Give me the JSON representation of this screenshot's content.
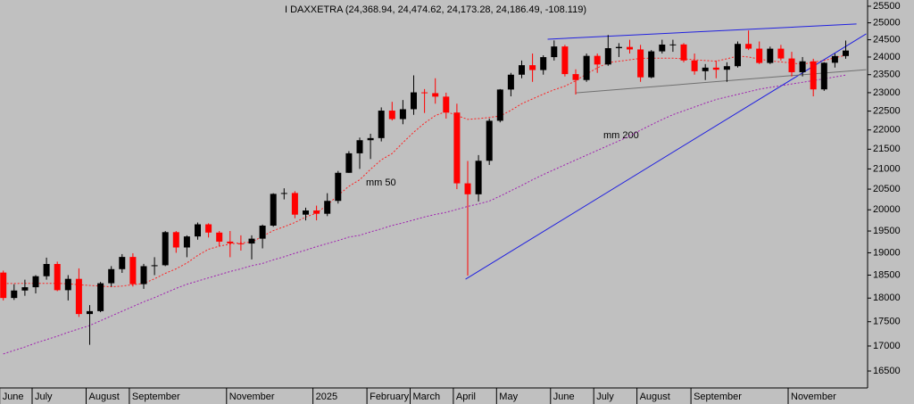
{
  "chart_data": {
    "type": "candlestick",
    "title": "I DAXXETRA (24,368.94, 24,474.62, 24,173.28, 24,186.49, -108.119)",
    "log_y": true,
    "ylim": [
      16170,
      25690
    ],
    "yticks": [
      16500,
      17000,
      17500,
      18000,
      18500,
      19000,
      19500,
      20000,
      20500,
      21000,
      21500,
      22000,
      22500,
      23000,
      23500,
      24000,
      24500,
      25000,
      25500
    ],
    "up_color": "#000000",
    "down_color": "#ff0000",
    "categories": [
      "June",
      null,
      null,
      "July",
      null,
      null,
      null,
      null,
      "August",
      null,
      null,
      null,
      "September",
      null,
      null,
      null,
      null,
      null,
      null,
      null,
      null,
      "November",
      null,
      null,
      null,
      null,
      null,
      null,
      null,
      "2025",
      null,
      null,
      null,
      null,
      "February",
      null,
      null,
      null,
      "March",
      null,
      null,
      null,
      "April",
      null,
      null,
      null,
      "May",
      null,
      null,
      null,
      null,
      "June",
      null,
      null,
      null,
      "July",
      null,
      null,
      null,
      "August",
      null,
      null,
      null,
      null,
      "September",
      null,
      null,
      null,
      null,
      null,
      null,
      null,
      null,
      "November",
      null,
      null,
      null,
      null,
      null
    ],
    "open": [
      18557,
      18002,
      18164,
      18235,
      18476,
      18748,
      18171,
      18418,
      17661,
      17722,
      18322,
      18633,
      18906,
      18302,
      18699,
      18720,
      19474,
      19121,
      19374,
      19657,
      19464,
      19255,
      19215,
      19211,
      19323,
      19626,
      20384,
      20405,
      19885,
      19984,
      19906,
      20214,
      20903,
      21395,
      21732,
      21787,
      22513,
      22287,
      22551,
      23009,
      22987,
      22892,
      22461,
      20642,
      20374,
      21205,
      22242,
      23087,
      23499,
      23767,
      23630,
      23997,
      24304,
      23516,
      23350,
      24033,
      23787,
      24255,
      24290,
      24218,
      23426,
      24163,
      24359,
      24363,
      23902,
      23597,
      23698,
      23639,
      23739,
      24379,
      24241,
      23831,
      24240,
      23958,
      23569,
      23877,
      23091,
      23836,
      24028
    ],
    "high": [
      18600,
      18300,
      18400,
      18500,
      18890,
      18800,
      18500,
      18650,
      17850,
      18350,
      18700,
      18970,
      18990,
      18750,
      18900,
      19500,
      19500,
      19400,
      19700,
      19680,
      19500,
      19500,
      19400,
      19400,
      19650,
      20400,
      20520,
      20450,
      20050,
      20100,
      20400,
      20950,
      21450,
      21800,
      21900,
      22600,
      22750,
      22800,
      23480,
      23100,
      23400,
      23000,
      22700,
      21200,
      21350,
      22300,
      23100,
      23550,
      23900,
      24100,
      24050,
      24480,
      24350,
      23650,
      24100,
      24100,
      24640,
      24400,
      24500,
      24350,
      24200,
      24500,
      24500,
      24400,
      24100,
      23800,
      23900,
      23850,
      24450,
      24771,
      24450,
      24300,
      24350,
      24150,
      24000,
      23950,
      23850,
      24100,
      24475
    ],
    "low": [
      17950,
      17960,
      18050,
      18100,
      18400,
      18150,
      17950,
      17600,
      17024,
      17700,
      18250,
      18550,
      18250,
      18200,
      18500,
      18700,
      19000,
      18900,
      19300,
      19350,
      19150,
      18900,
      19050,
      18850,
      19100,
      19600,
      20250,
      19800,
      19750,
      19750,
      19850,
      20150,
      20900,
      21000,
      21250,
      21700,
      22250,
      22150,
      22400,
      22450,
      22700,
      22300,
      20500,
      18490,
      20200,
      21100,
      22200,
      22900,
      23400,
      23300,
      23500,
      23900,
      23450,
      22950,
      23300,
      23550,
      23750,
      24000,
      24100,
      23300,
      23400,
      24100,
      24150,
      23850,
      23500,
      23350,
      23400,
      23300,
      23700,
      24200,
      23800,
      23800,
      23900,
      23450,
      23450,
      22900,
      23050,
      23700,
      23950
    ],
    "close": [
      18002,
      18164,
      18235,
      18476,
      18748,
      18171,
      18418,
      17661,
      17722,
      18322,
      18633,
      18906,
      18302,
      18699,
      18720,
      19474,
      19121,
      19374,
      19657,
      19464,
      19255,
      19215,
      19211,
      19323,
      19626,
      20384,
      20405,
      19885,
      19984,
      19906,
      20214,
      20903,
      21395,
      21732,
      21787,
      22513,
      22287,
      22551,
      23009,
      22987,
      22892,
      22461,
      20642,
      20374,
      21205,
      22242,
      23087,
      23499,
      23767,
      23630,
      23997,
      24304,
      23516,
      23350,
      24033,
      23787,
      24255,
      24290,
      24218,
      23426,
      24163,
      24359,
      24363,
      23902,
      23597,
      23698,
      23639,
      23739,
      24379,
      24241,
      23831,
      24240,
      23958,
      23569,
      23877,
      23091,
      23836,
      24028,
      24186.49
    ],
    "series": [
      {
        "name": "mm 50",
        "color": "#ff2020",
        "values": [
          18316,
          18316,
          18320,
          18320,
          18320,
          18320,
          18310,
          18290,
          18274,
          18260,
          18245,
          18260,
          18290,
          18316,
          18420,
          18540,
          18640,
          18770,
          18940,
          19080,
          19150,
          19200,
          19230,
          19240,
          19380,
          19510,
          19600,
          19700,
          19830,
          19920,
          20120,
          20350,
          20570,
          20730,
          20990,
          21230,
          21390,
          21670,
          21940,
          22180,
          22380,
          22490,
          22380,
          22280,
          22300,
          22330,
          22370,
          22520,
          22700,
          22830,
          22960,
          23080,
          23180,
          23330,
          23520,
          23690,
          23840,
          23880,
          23920,
          23960,
          23968,
          23968,
          23968,
          23950,
          23920,
          23900,
          23880,
          23950,
          24030,
          24000,
          23940,
          23890,
          23860,
          23830,
          23795,
          23850,
          23900,
          23980,
          24050
        ]
      },
      {
        "name": "mm 200",
        "color": "#a020b0",
        "values": [
          16840,
          16910,
          16980,
          17060,
          17130,
          17200,
          17280,
          17350,
          17421,
          17520,
          17620,
          17720,
          17820,
          17920,
          18010,
          18110,
          18210,
          18300,
          18370,
          18440,
          18510,
          18580,
          18640,
          18710,
          18760,
          18840,
          18910,
          18990,
          19060,
          19140,
          19210,
          19280,
          19360,
          19400,
          19480,
          19550,
          19630,
          19690,
          19760,
          19830,
          19890,
          19940,
          20010,
          20080,
          20140,
          20210,
          20330,
          20460,
          20590,
          20730,
          20859,
          20981,
          21103,
          21225,
          21347,
          21470,
          21592,
          21714,
          21843,
          21995,
          22135,
          22275,
          22404,
          22507,
          22611,
          22715,
          22813,
          22884,
          22954,
          23025,
          23096,
          23146,
          23193,
          23240,
          23287,
          23335,
          23385,
          23435,
          23489
        ]
      }
    ],
    "trend_lines": [
      {
        "color": "#2020e0",
        "x": [
          50.4,
          79.0
        ],
        "values": [
          24516,
          24965
        ]
      },
      {
        "color": "#2020e0",
        "x": [
          42.8,
          79.9
        ],
        "values": [
          18411,
          24674
        ]
      },
      {
        "color": "#707070",
        "x": [
          53.0,
          79.9
        ],
        "values": [
          22994,
          23641
        ]
      }
    ]
  }
}
